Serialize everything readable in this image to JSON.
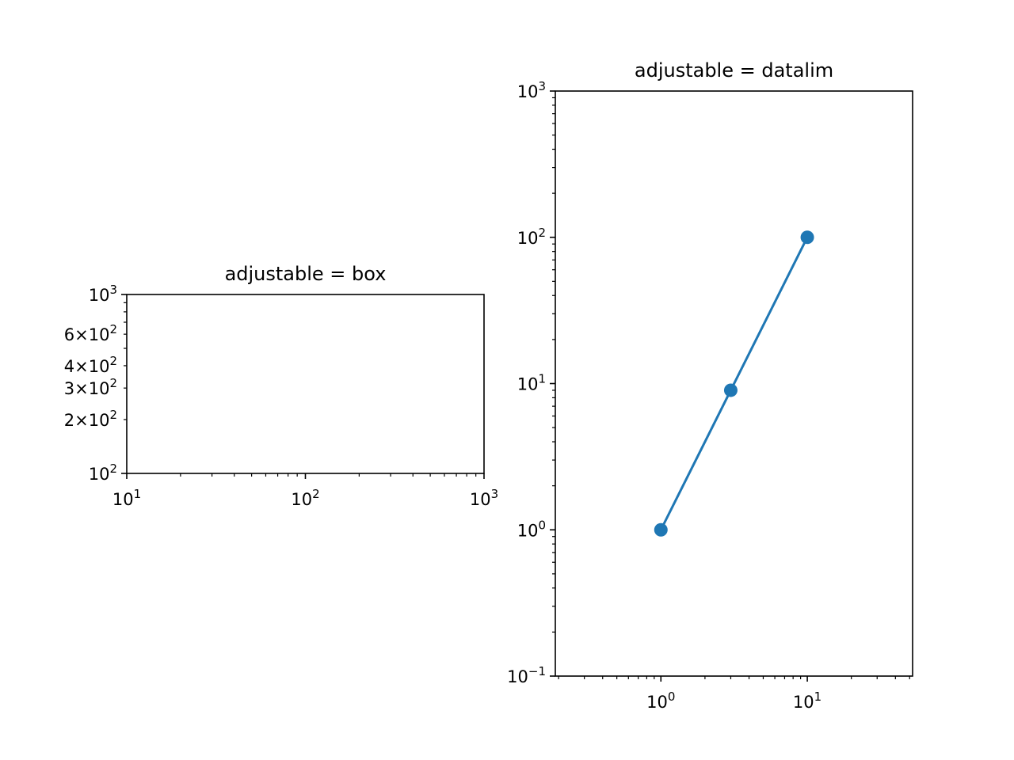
{
  "chart_data": [
    {
      "type": "line",
      "title": "adjustable = box",
      "xscale": "log",
      "yscale": "log",
      "xlim": [
        10,
        1000
      ],
      "ylim": [
        100,
        1000
      ],
      "grid": false,
      "x_ticks": [
        {
          "value": 10,
          "base": "10",
          "exp": "1"
        },
        {
          "value": 100,
          "base": "10",
          "exp": "2"
        },
        {
          "value": 1000,
          "base": "10",
          "exp": "3"
        }
      ],
      "y_ticks": [
        {
          "value": 100,
          "base": "10",
          "exp": "2"
        },
        {
          "value": 200,
          "base": "2×10",
          "exp": "2"
        },
        {
          "value": 300,
          "base": "3×10",
          "exp": "2"
        },
        {
          "value": 400,
          "base": "4×10",
          "exp": "2"
        },
        {
          "value": 600,
          "base": "6×10",
          "exp": "2"
        },
        {
          "value": 1000,
          "base": "10",
          "exp": "3"
        }
      ],
      "series": []
    },
    {
      "type": "line",
      "title": "adjustable = datalim",
      "xscale": "log",
      "yscale": "log",
      "xlim": [
        0.19,
        52.4
      ],
      "ylim": [
        0.1,
        1000
      ],
      "grid": false,
      "x_ticks": [
        {
          "value": 1,
          "base": "10",
          "exp": "0"
        },
        {
          "value": 10,
          "base": "10",
          "exp": "1"
        }
      ],
      "y_ticks": [
        {
          "value": 0.1,
          "base": "10",
          "exp": "−1"
        },
        {
          "value": 1,
          "base": "10",
          "exp": "0"
        },
        {
          "value": 10,
          "base": "10",
          "exp": "1"
        },
        {
          "value": 100,
          "base": "10",
          "exp": "2"
        },
        {
          "value": 1000,
          "base": "10",
          "exp": "3"
        }
      ],
      "series": [
        {
          "x": [
            1,
            3,
            10
          ],
          "y": [
            1,
            9,
            100
          ],
          "color": "#1f77b4",
          "marker": "o"
        }
      ]
    }
  ]
}
